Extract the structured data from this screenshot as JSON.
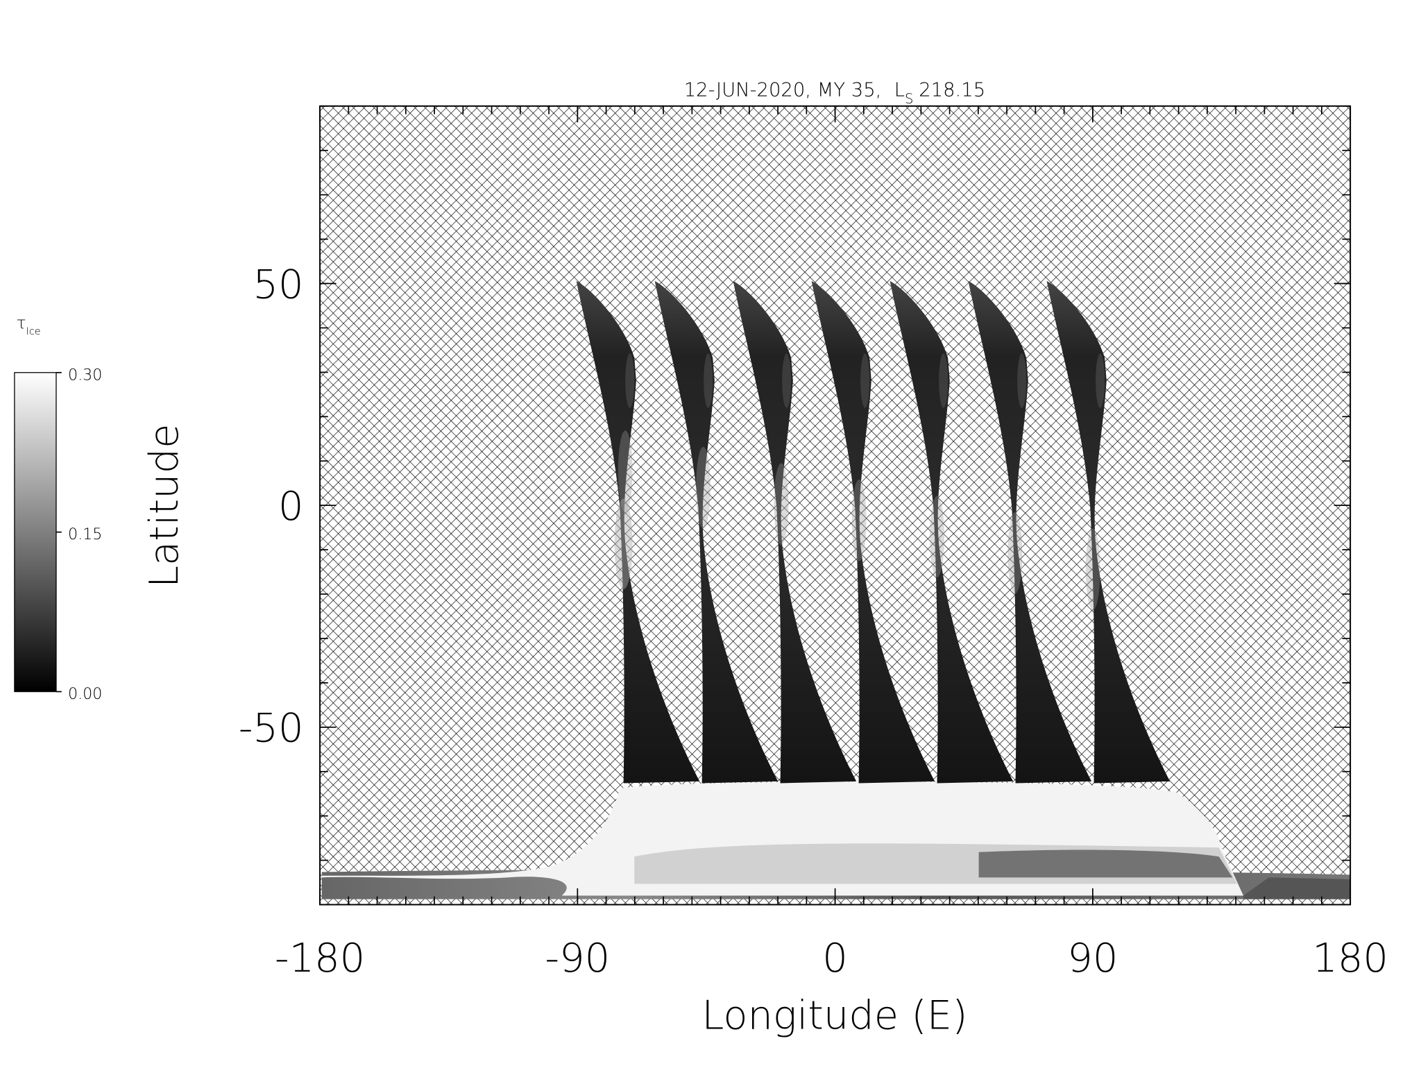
{
  "chart_data": {
    "type": "map",
    "title": "12-JUN-2020, MY 35,",
    "title_symbol": "L",
    "title_subscript": "S",
    "title_value": "218.15",
    "x_label": "Longitude (E)",
    "y_label": "Latitude",
    "xlim": [
      -180,
      180
    ],
    "xticks": [
      -180,
      -90,
      0,
      90,
      180
    ],
    "xminorticks": [
      -180,
      -170,
      -160,
      -150,
      -140,
      -130,
      -120,
      -110,
      -100,
      -90,
      -80,
      -70,
      -60,
      -50,
      -40,
      -30,
      -20,
      -10,
      0,
      10,
      20,
      30,
      40,
      50,
      60,
      70,
      80,
      90,
      100,
      110,
      120,
      130,
      140,
      150,
      160,
      170,
      180
    ],
    "ylim": [
      -90,
      90
    ],
    "yticks": [
      -50,
      0,
      50
    ],
    "yminorticks": [
      -90,
      -80,
      -70,
      -60,
      -50,
      -40,
      -30,
      -20,
      -10,
      0,
      10,
      20,
      30,
      40,
      50,
      60,
      70,
      80,
      90
    ],
    "colorbar": {
      "label": "τ",
      "label_subscript": "Ice",
      "lim": [
        0,
        0.3
      ],
      "ticks": [
        {
          "value": 0,
          "label": "0.00"
        },
        {
          "value": 0.15,
          "label": "0.15"
        },
        {
          "value": 0.3,
          "label": "0.30"
        }
      ]
    }
  }
}
